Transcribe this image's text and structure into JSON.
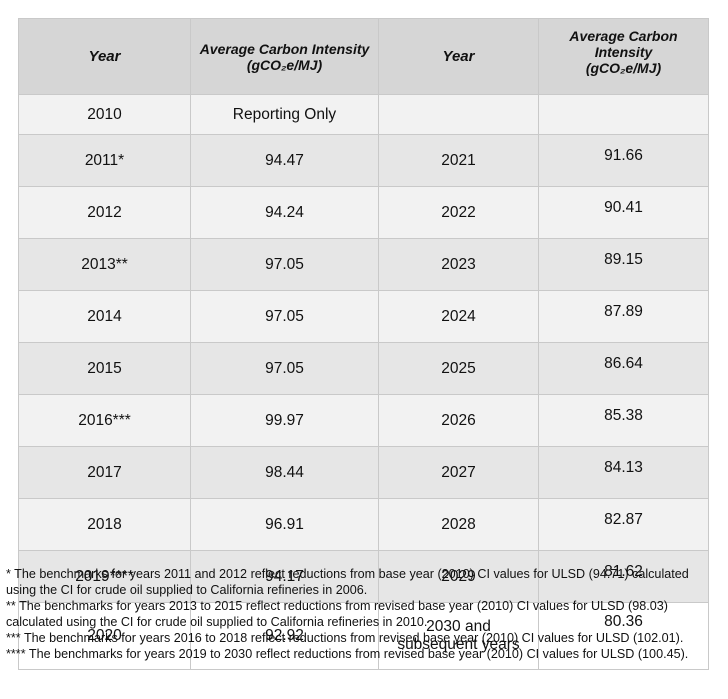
{
  "header": {
    "col1": "Year",
    "col2_line1": "Average Carbon Intensity",
    "col2_line2": "(gCO₂e/MJ)",
    "col3": "Year",
    "col4_line1": "Average Carbon",
    "col4_line2": "Intensity",
    "col4_line3": "(gCO₂e/MJ)"
  },
  "rows": [
    {
      "year1": "2010",
      "ci1": "Reporting Only",
      "year2": "",
      "ci2": ""
    },
    {
      "year1": "2011*",
      "ci1": "94.47",
      "year2": "2021",
      "ci2": "91.66"
    },
    {
      "year1": "2012",
      "ci1": "94.24",
      "year2": "2022",
      "ci2": "90.41"
    },
    {
      "year1": "2013**",
      "ci1": "97.05",
      "year2": "2023",
      "ci2": "89.15"
    },
    {
      "year1": "2014",
      "ci1": "97.05",
      "year2": "2024",
      "ci2": "87.89"
    },
    {
      "year1": "2015",
      "ci1": "97.05",
      "year2": "2025",
      "ci2": "86.64"
    },
    {
      "year1": "2016***",
      "ci1": "99.97",
      "year2": "2026",
      "ci2": "85.38"
    },
    {
      "year1": "2017",
      "ci1": "98.44",
      "year2": "2027",
      "ci2": "84.13"
    },
    {
      "year1": "2018",
      "ci1": "96.91",
      "year2": "2028",
      "ci2": "82.87"
    },
    {
      "year1": "2019****",
      "ci1": "94.17",
      "year2": "2029",
      "ci2": "81.62"
    },
    {
      "year1": "2020",
      "ci1": "92.92",
      "year2_line1": "2030 and",
      "year2_line2": "subsequent years",
      "ci2": "80.36"
    }
  ],
  "footnotes": [
    "* The benchmarks for years 2011 and 2012 reflect reductions from base year (2010) CI values for ULSD (94.71) calculated using the CI for crude oil supplied to California refineries in 2006.",
    "** The benchmarks for years 2013 to 2015 reflect reductions from revised base year (2010) CI values for ULSD (98.03) calculated using the CI for crude oil supplied to California refineries in 2010.",
    "*** The benchmarks for years 2016 to 2018 reflect reductions from revised base year (2010) CI values for ULSD (102.01).",
    "**** The benchmarks for years 2019 to 2030 reflect reductions from revised base year (2010) CI values for ULSD (100.45)."
  ]
}
